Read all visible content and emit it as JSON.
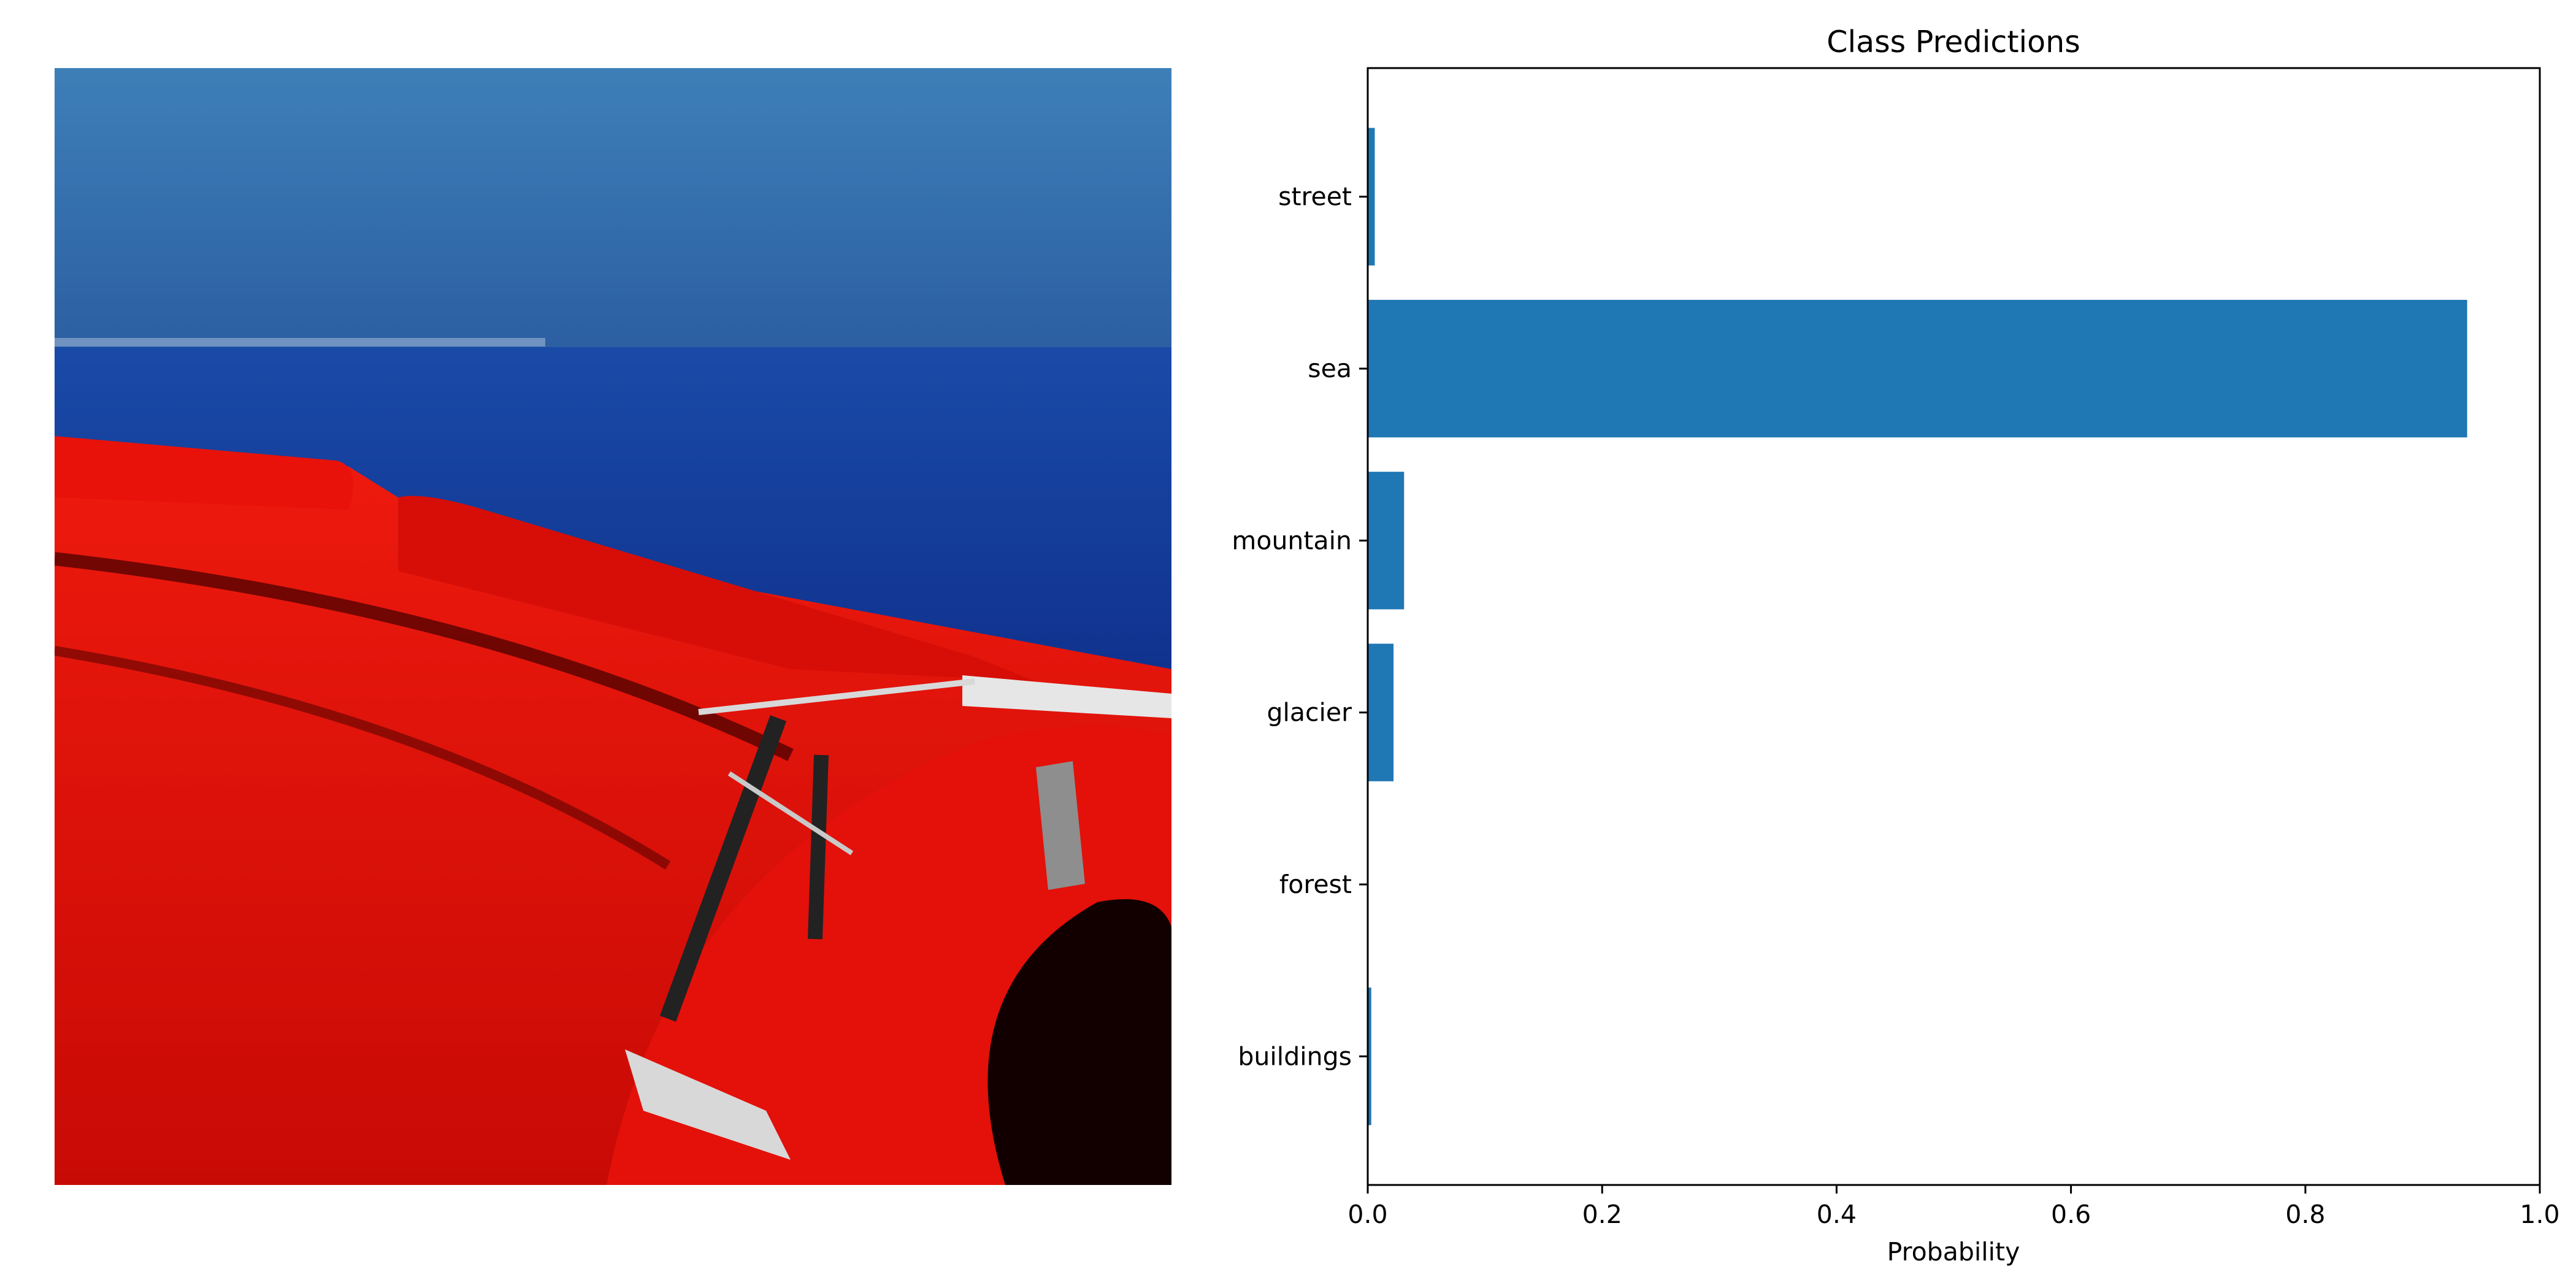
{
  "figure": {
    "photo_subject": "Red inflatable boat on a deep blue sea under a clear blue sky"
  },
  "colors": {
    "bar": "#1f77b4",
    "sky_top": "#3d7db6",
    "sky_horizon": "#2d62a4",
    "sea": "#13399a",
    "boat": "#e40d06",
    "boat_shadow": "#b50804"
  },
  "chart_data": {
    "type": "bar",
    "orientation": "horizontal",
    "title": "Class Predictions",
    "xlabel": "Probability",
    "ylabel": "",
    "xlim": [
      0.0,
      1.0
    ],
    "xticks": [
      "0.0",
      "0.2",
      "0.4",
      "0.6",
      "0.8",
      "1.0"
    ],
    "categories": [
      "buildings",
      "forest",
      "glacier",
      "mountain",
      "sea",
      "street"
    ],
    "values": [
      0.003,
      0.0005,
      0.022,
      0.031,
      0.938,
      0.006
    ],
    "grid": false,
    "legend": "none"
  }
}
